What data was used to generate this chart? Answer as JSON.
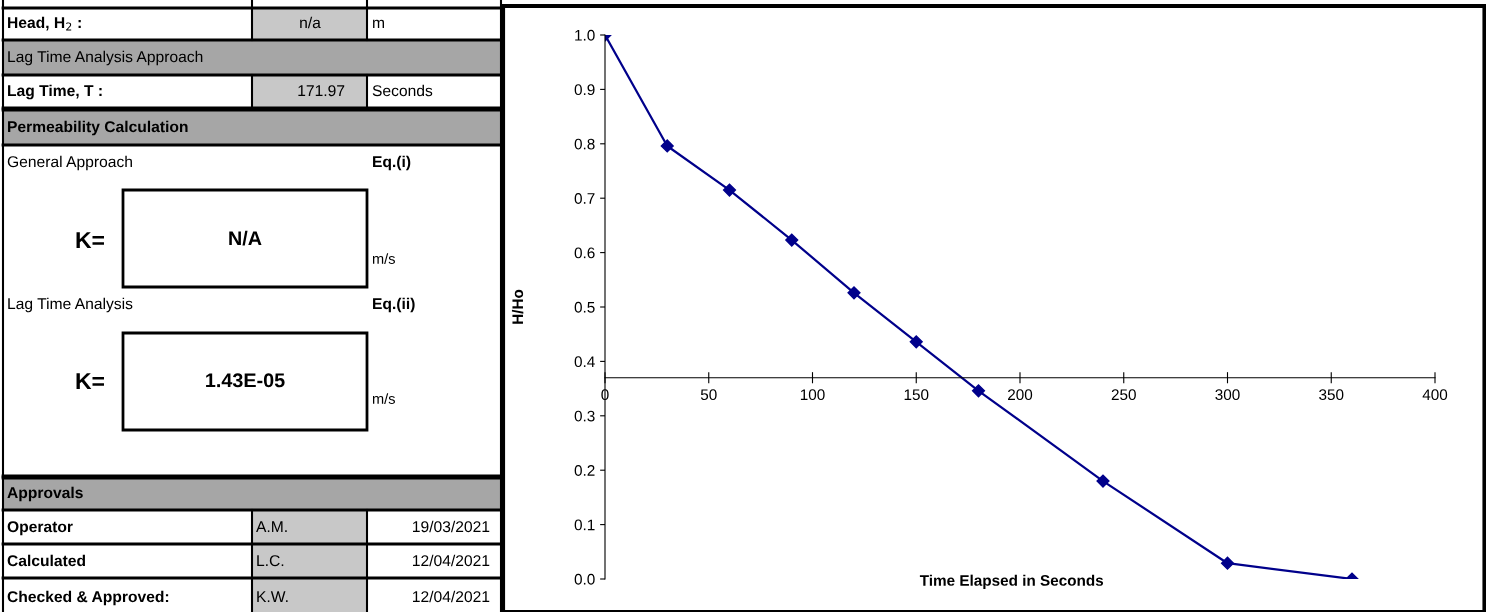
{
  "chart_data": [
    {
      "type": "other",
      "annotations": [
        "Head, H$_{2}$ :",
        "n/a",
        "m",
        "Lag Time Analysis Approach",
        "Lag Time, T :",
        "171.97",
        "Seconds",
        "Permeability Calculation",
        "General Approach",
        "Eq.(i)",
        "K=",
        "N/A",
        "m/s",
        "Lag Time Analysis",
        "Eq.(ii)",
        "K=",
        "1.43E-05",
        "m/s",
        "Approvals",
        "Operator",
        "A.M.",
        "19/03/2021",
        "Calculated",
        "L.C.",
        "12/04/2021",
        "Checked & Approved:",
        "K.W.",
        "12/04/2021"
      ]
    },
    {
      "type": "line",
      "xlabel": "Time Elapsed in Seconds",
      "ylabel": "H/Ho",
      "x": [
        0,
        30,
        60,
        90,
        120,
        150,
        180,
        240,
        300,
        360
      ],
      "series": [
        {
          "color": "#00008b",
          "values": [
            1.0,
            0.796,
            0.715,
            0.623,
            0.526,
            0.436,
            0.346,
            0.18,
            0.029,
            0.0
          ]
        }
      ],
      "xlim": [
        0,
        400
      ],
      "xticks": [
        0,
        50,
        100,
        150,
        200,
        250,
        300,
        350,
        400
      ],
      "ylim": [
        0,
        1.0
      ],
      "yticks": [
        {
          "value": 0,
          "label": "0.0"
        },
        0.1,
        0.2,
        0.3,
        0.4,
        0.5,
        0.6,
        0.7,
        0.8,
        0.9,
        {
          "value": 1,
          "label": "1.0"
        }
      ],
      "marker": "diamond",
      "line_style": "solid",
      "grid": false,
      "legend": false
    }
  ]
}
